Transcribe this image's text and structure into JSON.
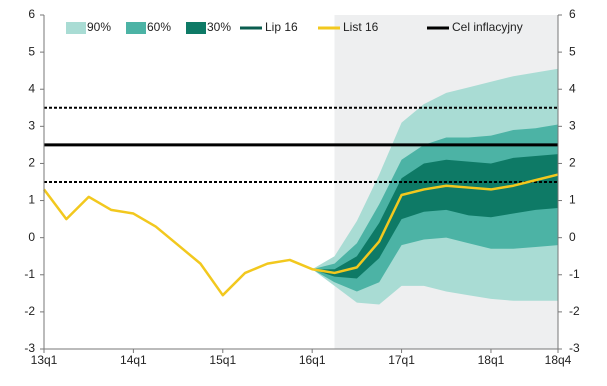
{
  "chart_data": {
    "type": "fan",
    "categories": [
      "13q1",
      null,
      null,
      null,
      "14q1",
      null,
      null,
      null,
      "15q1",
      null,
      null,
      null,
      "16q1",
      null,
      null,
      null,
      "17q1",
      null,
      null,
      null,
      "18q1",
      null,
      null,
      "18q4"
    ],
    "ylim": [
      -3,
      6
    ],
    "yticks": [
      -3,
      -2,
      -1,
      0,
      1,
      2,
      3,
      4,
      5,
      6
    ],
    "y2lim": [
      -3,
      6
    ],
    "y2ticks": [
      -3,
      -2,
      -1,
      0,
      1,
      2,
      3,
      4,
      5,
      6
    ],
    "bands": [
      {
        "name": "90%",
        "color": "#a9dcd4",
        "lower": [
          null,
          null,
          null,
          null,
          null,
          null,
          null,
          null,
          null,
          null,
          null,
          null,
          -0.85,
          -1.3,
          -1.75,
          -1.8,
          -1.3,
          -1.3,
          -1.45,
          -1.55,
          -1.65,
          -1.7,
          -1.7,
          -1.7
        ],
        "upper": [
          null,
          null,
          null,
          null,
          null,
          null,
          null,
          null,
          null,
          null,
          null,
          null,
          -0.85,
          -0.5,
          0.45,
          1.7,
          3.1,
          3.6,
          3.9,
          4.05,
          4.2,
          4.35,
          4.45,
          4.55
        ]
      },
      {
        "name": "60%",
        "color": "#4cb3a5",
        "lower": [
          null,
          null,
          null,
          null,
          null,
          null,
          null,
          null,
          null,
          null,
          null,
          null,
          -0.85,
          -1.2,
          -1.45,
          -1.2,
          -0.2,
          -0.05,
          0.0,
          -0.15,
          -0.3,
          -0.3,
          -0.25,
          -0.2
        ],
        "upper": [
          null,
          null,
          null,
          null,
          null,
          null,
          null,
          null,
          null,
          null,
          null,
          null,
          -0.85,
          -0.7,
          -0.15,
          0.9,
          2.1,
          2.5,
          2.7,
          2.7,
          2.75,
          2.9,
          2.95,
          3.05
        ]
      },
      {
        "name": "30%",
        "color": "#0e7a66",
        "lower": [
          null,
          null,
          null,
          null,
          null,
          null,
          null,
          null,
          null,
          null,
          null,
          null,
          -0.85,
          -1.05,
          -1.1,
          -0.55,
          0.5,
          0.7,
          0.75,
          0.6,
          0.55,
          0.65,
          0.75,
          0.8
        ],
        "upper": [
          null,
          null,
          null,
          null,
          null,
          null,
          null,
          null,
          null,
          null,
          null,
          null,
          -0.85,
          -0.85,
          -0.5,
          0.4,
          1.6,
          2.0,
          2.1,
          2.05,
          2.0,
          2.15,
          2.2,
          2.25
        ]
      }
    ],
    "legend_lines": [
      {
        "name": "Lip 16",
        "color": "#0b5d4f"
      }
    ],
    "series": [
      {
        "name": "List 16",
        "color": "#f2c81e",
        "values": [
          1.3,
          0.5,
          1.1,
          0.75,
          0.65,
          0.3,
          -0.2,
          -0.7,
          -1.55,
          -0.95,
          -0.7,
          -0.6,
          -0.85,
          -0.95,
          -0.8,
          -0.1,
          1.15,
          1.3,
          1.4,
          1.35,
          1.3,
          1.4,
          1.55,
          1.7
        ]
      }
    ],
    "reference_lines": [
      {
        "name": "Cel inflacyjny",
        "value": 2.5,
        "color": "#000000",
        "style": "solid"
      },
      {
        "value": 1.5,
        "color": "#000000",
        "style": "dashed"
      },
      {
        "value": 3.5,
        "color": "#000000",
        "style": "dashed"
      }
    ],
    "forecast_shade_color": "#eeeff0"
  }
}
